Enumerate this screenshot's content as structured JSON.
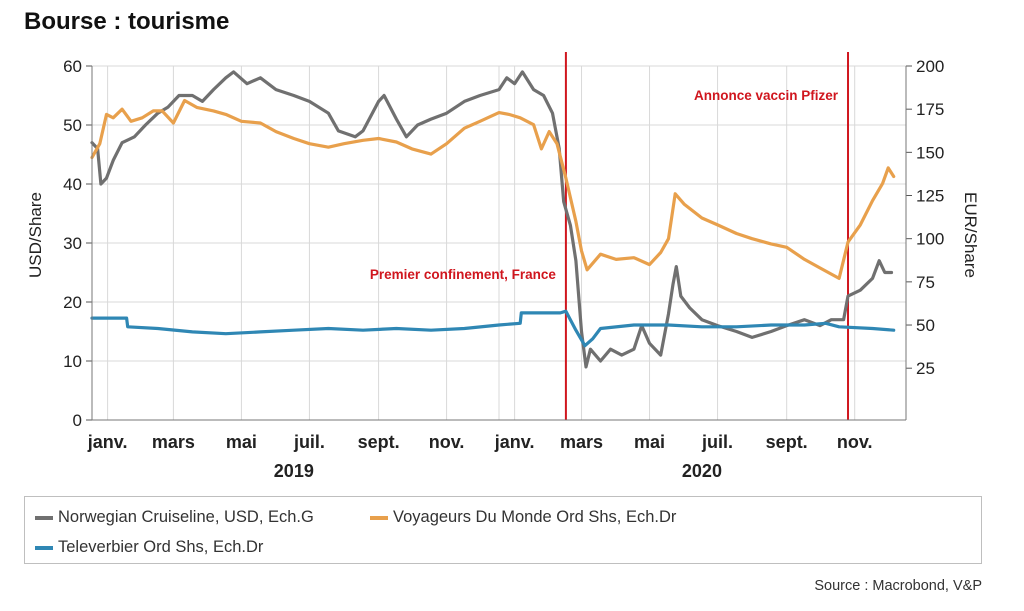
{
  "title": "Bourse : tourisme",
  "source": "Source : Macrobond, V&P",
  "colors": {
    "norwegian": "#707070",
    "voyageurs": "#E8A04C",
    "televerbier": "#2F87B4",
    "event": "#D0161E",
    "grid": "#d9d9d9"
  },
  "legend": [
    {
      "label": "Norwegian Cruiseline, USD, Ech.G",
      "color": "#707070"
    },
    {
      "label": "Voyageurs Du Monde Ord Shs, Ech.Dr",
      "color": "#E8A04C"
    },
    {
      "label": "Televerbier Ord Shs, Ech.Dr",
      "color": "#2F87B4"
    }
  ],
  "chart_data": {
    "type": "line",
    "x_domain": [
      "2019-01-01",
      "2020-12-31"
    ],
    "y_left": {
      "label": "USD/Share",
      "range": [
        0,
        60
      ],
      "ticks": [
        0,
        10,
        20,
        30,
        40,
        50,
        60
      ]
    },
    "y_right": {
      "label": "EUR/Share",
      "range": [
        25,
        200
      ],
      "ticks": [
        25,
        50,
        75,
        100,
        125,
        150,
        175,
        200
      ]
    },
    "x_tick_labels": [
      {
        "date": "2019-01-15",
        "label": "janv."
      },
      {
        "date": "2019-03-15",
        "label": "mars"
      },
      {
        "date": "2019-05-15",
        "label": "mai"
      },
      {
        "date": "2019-07-15",
        "label": "juil."
      },
      {
        "date": "2019-09-15",
        "label": "sept."
      },
      {
        "date": "2019-11-15",
        "label": "nov."
      },
      {
        "date": "2020-01-15",
        "label": "janv."
      },
      {
        "date": "2020-03-15",
        "label": "mars"
      },
      {
        "date": "2020-05-15",
        "label": "mai"
      },
      {
        "date": "2020-07-15",
        "label": "juil."
      },
      {
        "date": "2020-09-15",
        "label": "sept."
      },
      {
        "date": "2020-11-15",
        "label": "nov."
      }
    ],
    "year_labels": [
      {
        "date": "2019-07-01",
        "label": "2019"
      },
      {
        "date": "2020-07-01",
        "label": "2020"
      }
    ],
    "grid": true,
    "legend_position": "bottom",
    "events": [
      {
        "date": "2020-03-01",
        "label": "Premier confinement, France"
      },
      {
        "date": "2020-11-09",
        "label": "Annonce vaccin Pfizer"
      }
    ],
    "series": [
      {
        "name": "Norwegian Cruiseline, USD, Ech.G",
        "axis": "left",
        "points": [
          [
            "2019-01-01",
            47
          ],
          [
            "2019-01-06",
            46
          ],
          [
            "2019-01-09",
            40
          ],
          [
            "2019-01-14",
            41
          ],
          [
            "2019-01-20",
            44
          ],
          [
            "2019-01-28",
            47
          ],
          [
            "2019-02-08",
            48
          ],
          [
            "2019-02-18",
            50
          ],
          [
            "2019-03-01",
            52
          ],
          [
            "2019-03-10",
            53
          ],
          [
            "2019-03-20",
            55
          ],
          [
            "2019-04-01",
            55
          ],
          [
            "2019-04-10",
            54
          ],
          [
            "2019-04-20",
            56
          ],
          [
            "2019-05-01",
            58
          ],
          [
            "2019-05-08",
            59
          ],
          [
            "2019-05-20",
            57
          ],
          [
            "2019-06-01",
            58
          ],
          [
            "2019-06-15",
            56
          ],
          [
            "2019-07-01",
            55
          ],
          [
            "2019-07-15",
            54
          ],
          [
            "2019-08-01",
            52
          ],
          [
            "2019-08-10",
            49
          ],
          [
            "2019-08-25",
            48
          ],
          [
            "2019-09-01",
            49
          ],
          [
            "2019-09-15",
            54
          ],
          [
            "2019-09-20",
            55
          ],
          [
            "2019-10-01",
            51
          ],
          [
            "2019-10-10",
            48
          ],
          [
            "2019-10-20",
            50
          ],
          [
            "2019-11-01",
            51
          ],
          [
            "2019-11-15",
            52
          ],
          [
            "2019-12-01",
            54
          ],
          [
            "2019-12-15",
            55
          ],
          [
            "2020-01-01",
            56
          ],
          [
            "2020-01-08",
            58
          ],
          [
            "2020-01-15",
            57
          ],
          [
            "2020-01-22",
            59
          ],
          [
            "2020-02-01",
            56
          ],
          [
            "2020-02-10",
            55
          ],
          [
            "2020-02-18",
            52
          ],
          [
            "2020-02-24",
            46
          ],
          [
            "2020-02-28",
            37
          ],
          [
            "2020-03-05",
            33
          ],
          [
            "2020-03-10",
            27
          ],
          [
            "2020-03-15",
            15
          ],
          [
            "2020-03-19",
            9
          ],
          [
            "2020-03-23",
            12
          ],
          [
            "2020-04-01",
            10
          ],
          [
            "2020-04-10",
            12
          ],
          [
            "2020-04-20",
            11
          ],
          [
            "2020-05-01",
            12
          ],
          [
            "2020-05-08",
            16
          ],
          [
            "2020-05-15",
            13
          ],
          [
            "2020-05-25",
            11
          ],
          [
            "2020-06-01",
            18
          ],
          [
            "2020-06-05",
            23
          ],
          [
            "2020-06-08",
            26
          ],
          [
            "2020-06-12",
            21
          ],
          [
            "2020-06-20",
            19
          ],
          [
            "2020-07-01",
            17
          ],
          [
            "2020-07-15",
            16
          ],
          [
            "2020-08-01",
            15
          ],
          [
            "2020-08-15",
            14
          ],
          [
            "2020-09-01",
            15
          ],
          [
            "2020-09-15",
            16
          ],
          [
            "2020-10-01",
            17
          ],
          [
            "2020-10-15",
            16
          ],
          [
            "2020-10-25",
            17
          ],
          [
            "2020-11-05",
            17
          ],
          [
            "2020-11-09",
            21
          ],
          [
            "2020-11-20",
            22
          ],
          [
            "2020-12-01",
            24
          ],
          [
            "2020-12-07",
            27
          ],
          [
            "2020-12-12",
            25
          ],
          [
            "2020-12-18",
            25
          ]
        ]
      },
      {
        "name": "Voyageurs Du Monde Ord Shs, Ech.Dr",
        "axis": "right",
        "points": [
          [
            "2019-01-01",
            147
          ],
          [
            "2019-01-08",
            155
          ],
          [
            "2019-01-14",
            172
          ],
          [
            "2019-01-20",
            170
          ],
          [
            "2019-01-28",
            175
          ],
          [
            "2019-02-05",
            168
          ],
          [
            "2019-02-15",
            170
          ],
          [
            "2019-02-25",
            174
          ],
          [
            "2019-03-05",
            174
          ],
          [
            "2019-03-15",
            167
          ],
          [
            "2019-03-25",
            180
          ],
          [
            "2019-04-05",
            176
          ],
          [
            "2019-04-20",
            174
          ],
          [
            "2019-05-01",
            172
          ],
          [
            "2019-05-15",
            168
          ],
          [
            "2019-06-01",
            167
          ],
          [
            "2019-06-15",
            162
          ],
          [
            "2019-07-01",
            158
          ],
          [
            "2019-07-15",
            155
          ],
          [
            "2019-08-01",
            153
          ],
          [
            "2019-08-15",
            155
          ],
          [
            "2019-09-01",
            157
          ],
          [
            "2019-09-15",
            158
          ],
          [
            "2019-10-01",
            156
          ],
          [
            "2019-10-15",
            152
          ],
          [
            "2019-11-01",
            149
          ],
          [
            "2019-11-15",
            155
          ],
          [
            "2019-12-01",
            164
          ],
          [
            "2019-12-15",
            168
          ],
          [
            "2020-01-01",
            173
          ],
          [
            "2020-01-10",
            172
          ],
          [
            "2020-01-20",
            170
          ],
          [
            "2020-02-01",
            166
          ],
          [
            "2020-02-08",
            152
          ],
          [
            "2020-02-15",
            162
          ],
          [
            "2020-02-22",
            155
          ],
          [
            "2020-03-01",
            135
          ],
          [
            "2020-03-10",
            110
          ],
          [
            "2020-03-15",
            93
          ],
          [
            "2020-03-20",
            82
          ],
          [
            "2020-04-01",
            91
          ],
          [
            "2020-04-15",
            88
          ],
          [
            "2020-05-01",
            89
          ],
          [
            "2020-05-15",
            85
          ],
          [
            "2020-05-25",
            92
          ],
          [
            "2020-06-01",
            100
          ],
          [
            "2020-06-07",
            126
          ],
          [
            "2020-06-15",
            120
          ],
          [
            "2020-07-01",
            112
          ],
          [
            "2020-07-15",
            108
          ],
          [
            "2020-08-01",
            103
          ],
          [
            "2020-08-15",
            100
          ],
          [
            "2020-09-01",
            97
          ],
          [
            "2020-09-15",
            95
          ],
          [
            "2020-10-01",
            88
          ],
          [
            "2020-10-15",
            83
          ],
          [
            "2020-11-01",
            77
          ],
          [
            "2020-11-09",
            98
          ],
          [
            "2020-11-20",
            108
          ],
          [
            "2020-12-01",
            122
          ],
          [
            "2020-12-10",
            132
          ],
          [
            "2020-12-15",
            141
          ],
          [
            "2020-12-20",
            136
          ]
        ]
      },
      {
        "name": "Televerbier Ord Shs, Ech.Dr",
        "axis": "right",
        "points": [
          [
            "2019-01-01",
            54
          ],
          [
            "2019-02-01",
            54
          ],
          [
            "2019-02-02",
            49
          ],
          [
            "2019-03-01",
            48
          ],
          [
            "2019-04-01",
            46
          ],
          [
            "2019-05-01",
            45
          ],
          [
            "2019-06-01",
            46
          ],
          [
            "2019-07-01",
            47
          ],
          [
            "2019-08-01",
            48
          ],
          [
            "2019-09-01",
            47
          ],
          [
            "2019-10-01",
            48
          ],
          [
            "2019-11-01",
            47
          ],
          [
            "2019-12-01",
            48
          ],
          [
            "2020-01-01",
            50
          ],
          [
            "2020-01-20",
            51
          ],
          [
            "2020-01-21",
            57
          ],
          [
            "2020-02-25",
            57
          ],
          [
            "2020-03-01",
            58
          ],
          [
            "2020-03-10",
            47
          ],
          [
            "2020-03-18",
            38
          ],
          [
            "2020-03-25",
            42
          ],
          [
            "2020-04-01",
            48
          ],
          [
            "2020-05-01",
            50
          ],
          [
            "2020-06-01",
            50
          ],
          [
            "2020-07-01",
            49
          ],
          [
            "2020-08-01",
            49
          ],
          [
            "2020-09-01",
            50
          ],
          [
            "2020-10-01",
            50
          ],
          [
            "2020-10-20",
            51
          ],
          [
            "2020-11-01",
            49
          ],
          [
            "2020-12-01",
            48
          ],
          [
            "2020-12-20",
            47
          ]
        ]
      }
    ]
  }
}
